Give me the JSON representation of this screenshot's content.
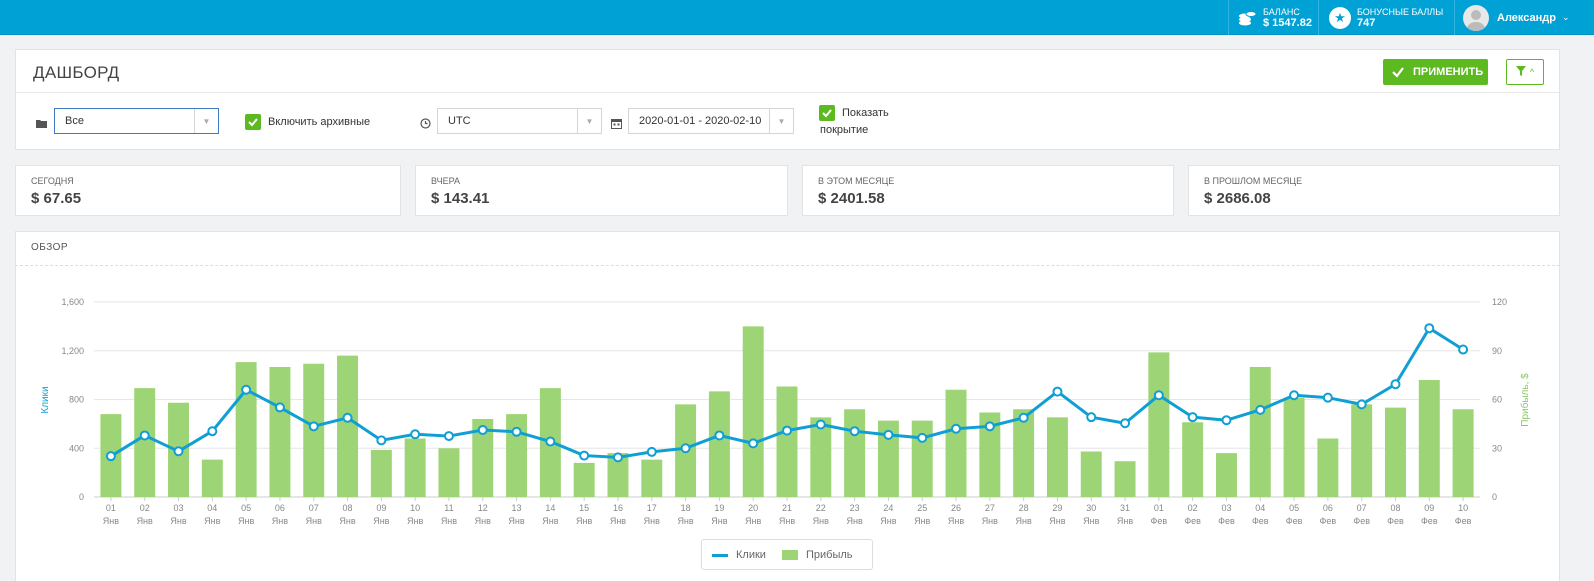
{
  "topbar": {
    "balance_label": "БАЛАНС",
    "balance_value": "$ 1547.82",
    "bonus_label": "БОНУСНЫЕ БАЛЛЫ",
    "bonus_value": "747",
    "user_name": "Александр",
    "accent": "#00a1d5"
  },
  "header": {
    "title": "ДАШБОРД",
    "apply_label": "ПРИМЕНИТЬ"
  },
  "filters": {
    "campaign_value": "Все",
    "include_archived_label": "Включить архивные",
    "include_archived_checked": true,
    "timezone_value": "UTC",
    "date_range_value": "2020-01-01 - 2020-02-10",
    "show_coverage_label_1": "Показать",
    "show_coverage_label_2": "покрытие",
    "show_coverage_checked": true
  },
  "stats": [
    {
      "label": "СЕГОДНЯ",
      "value": "$ 67.65"
    },
    {
      "label": "ВЧЕРА",
      "value": "$ 143.41"
    },
    {
      "label": "В ЭТОМ МЕСЯЦЕ",
      "value": "$ 2401.58"
    },
    {
      "label": "В ПРОШЛОМ МЕСЯЦЕ",
      "value": "$ 2686.08"
    }
  ],
  "overview": {
    "title": "ОБЗОР"
  },
  "chart_data": {
    "type": "bar",
    "categories": [
      "01 Янв",
      "02 Янв",
      "03 Янв",
      "04 Янв",
      "05 Янв",
      "06 Янв",
      "07 Янв",
      "08 Янв",
      "09 Янв",
      "10 Янв",
      "11 Янв",
      "12 Янв",
      "13 Янв",
      "14 Янв",
      "15 Янв",
      "16 Янв",
      "17 Янв",
      "18 Янв",
      "19 Янв",
      "20 Янв",
      "21 Янв",
      "22 Янв",
      "23 Янв",
      "24 Янв",
      "25 Янв",
      "26 Янв",
      "27 Янв",
      "28 Янв",
      "29 Янв",
      "30 Янв",
      "31 Янв",
      "01 Фев",
      "02 Фев",
      "03 Фев",
      "04 Фев",
      "05 Фев",
      "06 Фев",
      "07 Фев",
      "08 Фев",
      "09 Фев",
      "10 Фев"
    ],
    "x_day": [
      "01",
      "02",
      "03",
      "04",
      "05",
      "06",
      "07",
      "08",
      "09",
      "10",
      "11",
      "12",
      "13",
      "14",
      "15",
      "16",
      "17",
      "18",
      "19",
      "20",
      "21",
      "22",
      "23",
      "24",
      "25",
      "26",
      "27",
      "28",
      "29",
      "30",
      "31",
      "01",
      "02",
      "03",
      "04",
      "05",
      "06",
      "07",
      "08",
      "09",
      "10"
    ],
    "x_month": [
      "Янв",
      "Янв",
      "Янв",
      "Янв",
      "Янв",
      "Янв",
      "Янв",
      "Янв",
      "Янв",
      "Янв",
      "Янв",
      "Янв",
      "Янв",
      "Янв",
      "Янв",
      "Янв",
      "Янв",
      "Янв",
      "Янв",
      "Янв",
      "Янв",
      "Янв",
      "Янв",
      "Янв",
      "Янв",
      "Янв",
      "Янв",
      "Янв",
      "Янв",
      "Янв",
      "Янв",
      "Фев",
      "Фев",
      "Фев",
      "Фев",
      "Фев",
      "Фев",
      "Фев",
      "Фев",
      "Фев",
      "Фев"
    ],
    "series": [
      {
        "name": "Клики",
        "type": "line",
        "axis": "left",
        "color": "#0f9fd4",
        "values": [
          335,
          505,
          375,
          540,
          880,
          735,
          580,
          650,
          465,
          515,
          500,
          550,
          535,
          455,
          340,
          325,
          370,
          400,
          505,
          440,
          545,
          595,
          540,
          510,
          485,
          560,
          580,
          650,
          865,
          655,
          605,
          835,
          655,
          630,
          715,
          835,
          815,
          760,
          925,
          1385,
          1210
        ]
      },
      {
        "name": "Прибыль",
        "type": "bar",
        "axis": "right",
        "color": "#9dd476",
        "values": [
          51,
          67,
          58,
          23,
          83,
          80,
          82,
          87,
          29,
          36,
          30,
          48,
          51,
          67,
          21,
          27,
          23,
          57,
          65,
          105,
          68,
          49,
          54,
          47,
          47,
          66,
          52,
          54,
          49,
          28,
          22,
          89,
          46,
          27,
          80,
          61,
          36,
          57,
          55,
          72,
          54
        ]
      }
    ],
    "yleft": {
      "label": "Клики",
      "ylim": [
        0,
        1600
      ],
      "ticks": [
        "0",
        "400",
        "800",
        "1,200",
        "1,600"
      ]
    },
    "yright": {
      "label": "Прибыль, $",
      "ylim": [
        0,
        120
      ],
      "ticks": [
        "0",
        "30",
        "60",
        "90",
        "120"
      ]
    },
    "grid": true,
    "legend": "bottom-center"
  }
}
